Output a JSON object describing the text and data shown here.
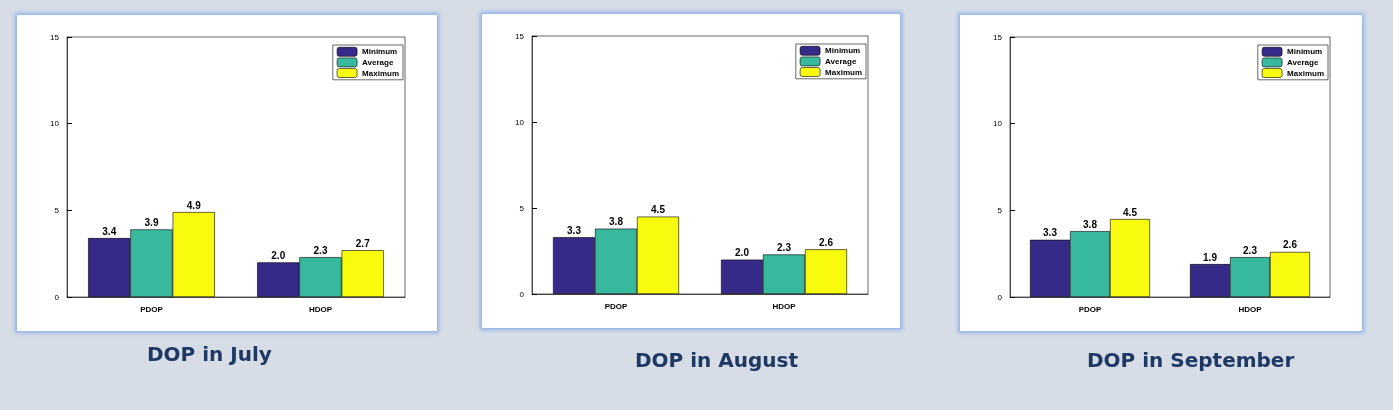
{
  "chart_data": [
    {
      "type": "bar",
      "title": "DOP in July",
      "categories": [
        "PDOP",
        "HDOP"
      ],
      "ylim": [
        0,
        15
      ],
      "yticks": [
        0,
        5,
        10,
        15
      ],
      "grid": false,
      "legend": "top right",
      "series": [
        {
          "name": "Minimum",
          "color": "#352a87",
          "values": [
            3.4,
            2.0
          ],
          "value_labels": [
            "3.4",
            "2.0"
          ]
        },
        {
          "name": "Average",
          "color": "#38b99e",
          "values": [
            3.9,
            2.3
          ],
          "value_labels": [
            "3.9",
            "2.3"
          ]
        },
        {
          "name": "Maximum",
          "color": "#f9fb0e",
          "values": [
            4.9,
            2.7
          ],
          "value_labels": [
            "4.9",
            "2.7"
          ]
        }
      ]
    },
    {
      "type": "bar",
      "title": "DOP in August",
      "categories": [
        "PDOP",
        "HDOP"
      ],
      "ylim": [
        0,
        15
      ],
      "yticks": [
        0,
        5,
        10,
        15
      ],
      "grid": false,
      "legend": "top right",
      "series": [
        {
          "name": "Minimum",
          "color": "#352a87",
          "values": [
            3.3,
            2.0
          ],
          "value_labels": [
            "3.3",
            "2.0"
          ]
        },
        {
          "name": "Average",
          "color": "#38b99e",
          "values": [
            3.8,
            2.3
          ],
          "value_labels": [
            "3.8",
            "2.3"
          ]
        },
        {
          "name": "Maximum",
          "color": "#f9fb0e",
          "values": [
            4.5,
            2.6
          ],
          "value_labels": [
            "4.5",
            "2.6"
          ]
        }
      ]
    },
    {
      "type": "bar",
      "title": "DOP in September",
      "categories": [
        "PDOP",
        "HDOP"
      ],
      "ylim": [
        0,
        15
      ],
      "yticks": [
        0,
        5,
        10,
        15
      ],
      "grid": false,
      "legend": "top right",
      "series": [
        {
          "name": "Minimum",
          "color": "#352a87",
          "values": [
            3.3,
            1.9
          ],
          "value_labels": [
            "3.3",
            "1.9"
          ]
        },
        {
          "name": "Average",
          "color": "#38b99e",
          "values": [
            3.8,
            2.3
          ],
          "value_labels": [
            "3.8",
            "2.3"
          ]
        },
        {
          "name": "Maximum",
          "color": "#f9fb0e",
          "values": [
            4.5,
            2.6
          ],
          "value_labels": [
            "4.5",
            "2.6"
          ]
        }
      ]
    }
  ]
}
